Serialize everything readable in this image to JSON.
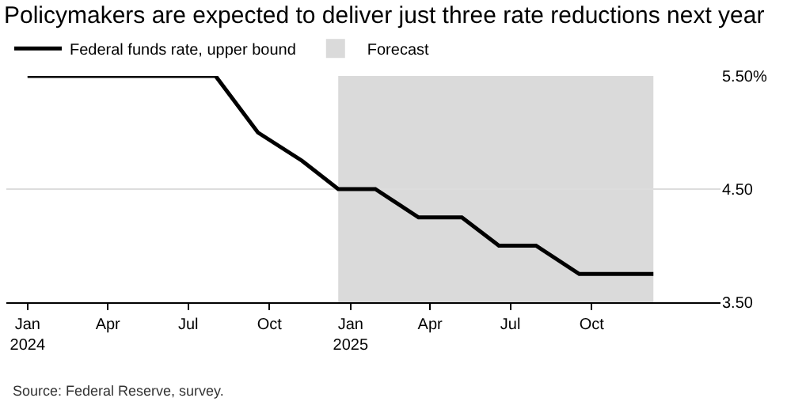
{
  "chart_data": {
    "type": "line",
    "title": "Policymakers are expected to deliver just three rate reductions next year",
    "x": [
      "2024-01-01",
      "2024-08-01",
      "2024-09-18",
      "2024-11-07",
      "2024-12-18",
      "2025-01-29",
      "2025-03-19",
      "2025-05-07",
      "2025-06-18",
      "2025-07-30",
      "2025-09-17",
      "2025-12-10"
    ],
    "series": [
      {
        "name": "Federal funds rate, upper bound",
        "color": "#000000",
        "values": [
          5.5,
          5.5,
          5.0,
          4.75,
          4.5,
          4.5,
          4.25,
          4.25,
          4.0,
          4.0,
          3.75,
          3.75
        ]
      }
    ],
    "bands": [
      {
        "axis": "x",
        "from": "2024-12-18",
        "to": "2025-12-10",
        "label": "Forecast",
        "color": "#dadada"
      }
    ],
    "xlim": [
      "2023-12-08",
      "2026-02-24"
    ],
    "xticks": [
      {
        "value": "2024-01-01",
        "label": "Jan\n2024"
      },
      {
        "value": "2024-04-01",
        "label": "Apr"
      },
      {
        "value": "2024-07-01",
        "label": "Jul"
      },
      {
        "value": "2024-10-01",
        "label": "Oct"
      },
      {
        "value": "2025-01-01",
        "label": "Jan\n2025"
      },
      {
        "value": "2025-04-01",
        "label": "Apr"
      },
      {
        "value": "2025-07-01",
        "label": "Jul"
      },
      {
        "value": "2025-10-01",
        "label": "Oct"
      }
    ],
    "ylim": [
      3.5,
      5.5
    ],
    "yticks": [
      {
        "value": 3.5,
        "label": "3.50"
      },
      {
        "value": 4.5,
        "label": "4.50"
      },
      {
        "value": 5.5,
        "label": "5.50%"
      }
    ],
    "grid": "y",
    "legend": "top left",
    "line_style": "solid",
    "marker": "none",
    "annotations": [
      "Source: Federal Reserve, survey."
    ]
  }
}
